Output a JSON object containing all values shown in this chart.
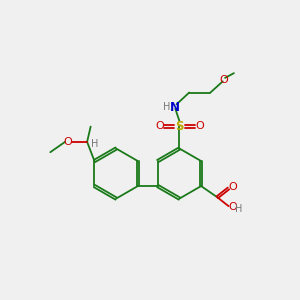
{
  "background_color": "#f0f0f0",
  "atom_colors": {
    "C": "#1a7a1a",
    "O": "#cc0000",
    "N": "#0000cc",
    "S": "#bbaa00",
    "H": "#777777"
  },
  "bond_color": "#1a7a1a",
  "figsize": [
    3.0,
    3.0
  ],
  "dpi": 100,
  "ring_r": 0.85
}
